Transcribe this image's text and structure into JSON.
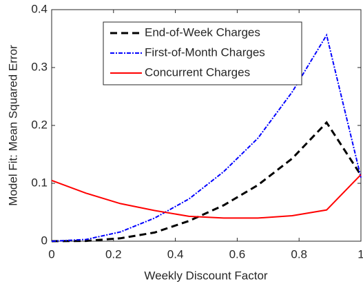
{
  "chart_data": {
    "type": "line",
    "xlabel": "Weekly Discount Factor",
    "ylabel": "Model Fit: Mean Squared Error",
    "x": [
      0,
      0.111,
      0.222,
      0.333,
      0.444,
      0.556,
      0.667,
      0.778,
      0.889,
      1
    ],
    "series": [
      {
        "name": "End-of-Week Charges",
        "color": "#000000",
        "dash": "10,6",
        "values": [
          0,
          0.0005,
          0.005,
          0.015,
          0.035,
          0.062,
          0.097,
          0.143,
          0.205,
          0.114
        ]
      },
      {
        "name": "First-of-Month Charges",
        "color": "#0000ff",
        "dash": "6,2,2,2",
        "values": [
          0,
          0.003,
          0.016,
          0.04,
          0.073,
          0.12,
          0.178,
          0.258,
          0.356,
          0.11
        ]
      },
      {
        "name": "Concurrent Charges",
        "color": "#ff0000",
        "dash": "none",
        "values": [
          0.105,
          0.083,
          0.065,
          0.053,
          0.043,
          0.04,
          0.04,
          0.044,
          0.054,
          0.115
        ]
      }
    ],
    "xlim": [
      0,
      1
    ],
    "xticks": [
      0,
      0.2,
      0.4,
      0.6,
      0.8,
      1
    ],
    "ylim": [
      0,
      0.4
    ],
    "yticks": [
      0,
      0.1,
      0.2,
      0.3,
      0.4
    ],
    "legend": "top"
  }
}
